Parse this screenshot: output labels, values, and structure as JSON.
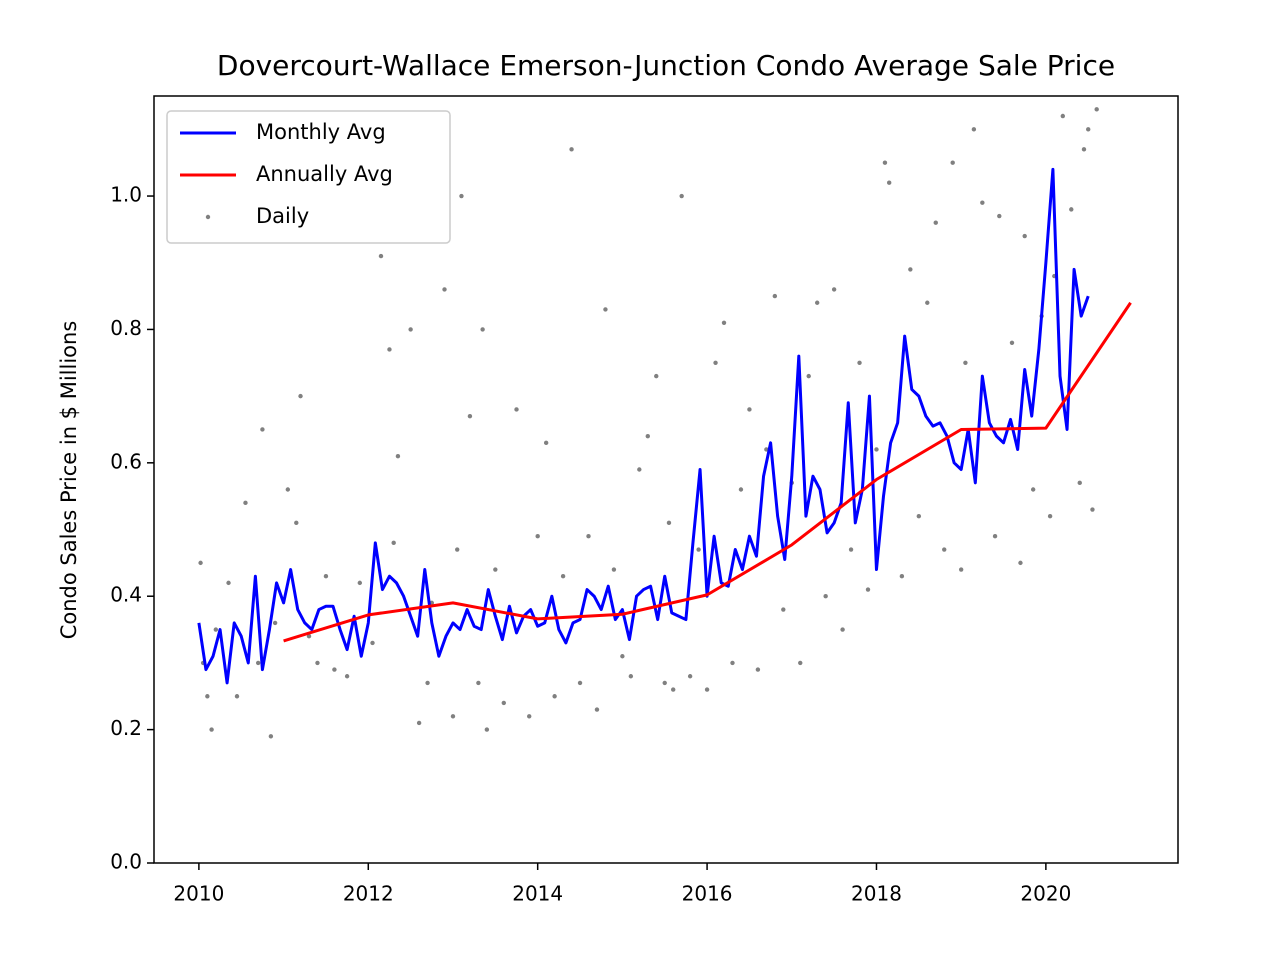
{
  "chart_data": {
    "type": "line",
    "title": "Dovercourt-Wallace Emerson-Junction Condo Average Sale Price",
    "y_label": "Condo Sales Price in $ Millions",
    "xlim": [
      2009.47,
      2021.56
    ],
    "ylim": [
      0,
      1.15
    ],
    "xticks": [
      2010,
      2012,
      2014,
      2016,
      2018,
      2020
    ],
    "yticks": [
      {
        "value": 0,
        "label": "0.0"
      },
      0.2,
      0.4,
      0.6,
      0.8,
      {
        "value": 1,
        "label": "1.0"
      }
    ],
    "legend": "upper left",
    "series": [
      {
        "name": "Monthly Avg",
        "color": "#0000ff",
        "style": "line",
        "x": [
          2010.0,
          2010.083,
          2010.167,
          2010.25,
          2010.333,
          2010.417,
          2010.5,
          2010.583,
          2010.667,
          2010.75,
          2010.833,
          2010.917,
          2011.0,
          2011.083,
          2011.167,
          2011.25,
          2011.333,
          2011.417,
          2011.5,
          2011.583,
          2011.667,
          2011.75,
          2011.833,
          2011.917,
          2012.0,
          2012.083,
          2012.167,
          2012.25,
          2012.333,
          2012.417,
          2012.5,
          2012.583,
          2012.667,
          2012.75,
          2012.833,
          2012.917,
          2013.0,
          2013.083,
          2013.167,
          2013.25,
          2013.333,
          2013.417,
          2013.5,
          2013.583,
          2013.667,
          2013.75,
          2013.833,
          2013.917,
          2014.0,
          2014.083,
          2014.167,
          2014.25,
          2014.333,
          2014.417,
          2014.5,
          2014.583,
          2014.667,
          2014.75,
          2014.833,
          2014.917,
          2015.0,
          2015.083,
          2015.167,
          2015.25,
          2015.333,
          2015.417,
          2015.5,
          2015.583,
          2015.667,
          2015.75,
          2015.833,
          2015.917,
          2016.0,
          2016.083,
          2016.167,
          2016.25,
          2016.333,
          2016.417,
          2016.5,
          2016.583,
          2016.667,
          2016.75,
          2016.833,
          2016.917,
          2017.0,
          2017.083,
          2017.167,
          2017.25,
          2017.333,
          2017.417,
          2017.5,
          2017.583,
          2017.667,
          2017.75,
          2017.833,
          2017.917,
          2018.0,
          2018.083,
          2018.167,
          2018.25,
          2018.333,
          2018.417,
          2018.5,
          2018.583,
          2018.667,
          2018.75,
          2018.833,
          2018.917,
          2019.0,
          2019.083,
          2019.167,
          2019.25,
          2019.333,
          2019.417,
          2019.5,
          2019.583,
          2019.667,
          2019.75,
          2019.833,
          2019.917,
          2020.0,
          2020.083,
          2020.167,
          2020.25,
          2020.333,
          2020.417,
          2020.5
        ],
        "values": [
          0.36,
          0.29,
          0.31,
          0.35,
          0.27,
          0.36,
          0.34,
          0.3,
          0.43,
          0.29,
          0.35,
          0.42,
          0.39,
          0.44,
          0.38,
          0.36,
          0.35,
          0.38,
          0.385,
          0.385,
          0.35,
          0.32,
          0.37,
          0.31,
          0.36,
          0.48,
          0.41,
          0.43,
          0.42,
          0.4,
          0.37,
          0.34,
          0.44,
          0.36,
          0.31,
          0.34,
          0.36,
          0.35,
          0.38,
          0.355,
          0.35,
          0.41,
          0.37,
          0.335,
          0.385,
          0.345,
          0.37,
          0.38,
          0.355,
          0.36,
          0.4,
          0.35,
          0.33,
          0.36,
          0.365,
          0.41,
          0.4,
          0.38,
          0.415,
          0.365,
          0.38,
          0.335,
          0.4,
          0.41,
          0.415,
          0.365,
          0.43,
          0.375,
          0.37,
          0.365,
          0.48,
          0.59,
          0.4,
          0.49,
          0.42,
          0.415,
          0.47,
          0.44,
          0.49,
          0.46,
          0.58,
          0.63,
          0.52,
          0.455,
          0.58,
          0.76,
          0.52,
          0.58,
          0.56,
          0.495,
          0.51,
          0.54,
          0.69,
          0.51,
          0.56,
          0.7,
          0.44,
          0.55,
          0.63,
          0.66,
          0.79,
          0.71,
          0.7,
          0.67,
          0.655,
          0.66,
          0.64,
          0.6,
          0.59,
          0.65,
          0.57,
          0.73,
          0.66,
          0.64,
          0.63,
          0.665,
          0.62,
          0.74,
          0.67,
          0.77,
          0.9,
          1.04,
          0.73,
          0.65,
          0.89,
          0.82,
          0.85
        ]
      },
      {
        "name": "Annually Avg",
        "color": "#ff0000",
        "style": "line",
        "x": [
          2011,
          2012,
          2013,
          2014,
          2015,
          2016,
          2017,
          2018,
          2019,
          2020,
          2021
        ],
        "values": [
          0.333,
          0.372,
          0.39,
          0.366,
          0.373,
          0.402,
          0.477,
          0.575,
          0.65,
          0.652,
          0.84
        ]
      },
      {
        "name": "Daily",
        "color": "#808080",
        "style": "scatter",
        "x": [
          2010.02,
          2010.05,
          2010.1,
          2010.15,
          2010.2,
          2010.35,
          2010.45,
          2010.55,
          2010.7,
          2010.75,
          2010.85,
          2010.9,
          2011.05,
          2011.15,
          2011.2,
          2011.3,
          2011.4,
          2011.5,
          2011.6,
          2011.75,
          2011.9,
          2012.05,
          2012.15,
          2012.25,
          2012.3,
          2012.35,
          2012.5,
          2012.6,
          2012.7,
          2012.75,
          2012.9,
          2013.0,
          2013.05,
          2013.1,
          2013.2,
          2013.3,
          2013.35,
          2013.4,
          2013.5,
          2013.6,
          2013.75,
          2013.9,
          2014.0,
          2014.1,
          2014.2,
          2014.3,
          2014.4,
          2014.5,
          2014.6,
          2014.7,
          2014.8,
          2014.9,
          2015.0,
          2015.1,
          2015.2,
          2015.3,
          2015.4,
          2015.5,
          2015.55,
          2015.6,
          2015.7,
          2015.8,
          2015.9,
          2016.0,
          2016.1,
          2016.2,
          2016.3,
          2016.4,
          2016.5,
          2016.6,
          2016.7,
          2016.8,
          2016.9,
          2017.0,
          2017.1,
          2017.2,
          2017.3,
          2017.4,
          2017.5,
          2017.6,
          2017.7,
          2017.8,
          2017.9,
          2018.0,
          2018.1,
          2018.15,
          2018.3,
          2018.4,
          2018.5,
          2018.6,
          2018.7,
          2018.8,
          2018.9,
          2019.0,
          2019.05,
          2019.15,
          2019.25,
          2019.4,
          2019.45,
          2019.6,
          2019.7,
          2019.75,
          2019.85,
          2019.95,
          2020.05,
          2020.1,
          2020.2,
          2020.3,
          2020.4,
          2020.45,
          2020.5,
          2020.55,
          2020.6
        ],
        "values": [
          0.45,
          0.3,
          0.25,
          0.2,
          0.35,
          0.42,
          0.25,
          0.54,
          0.3,
          0.65,
          0.19,
          0.36,
          0.56,
          0.51,
          0.7,
          0.34,
          0.3,
          0.43,
          0.29,
          0.28,
          0.42,
          0.33,
          0.91,
          0.77,
          0.48,
          0.61,
          0.8,
          0.21,
          0.27,
          0.39,
          0.86,
          0.22,
          0.47,
          1.0,
          0.67,
          0.27,
          0.8,
          0.2,
          0.44,
          0.24,
          0.68,
          0.22,
          0.49,
          0.63,
          0.25,
          0.43,
          1.07,
          0.27,
          0.49,
          0.23,
          0.83,
          0.44,
          0.31,
          0.28,
          0.59,
          0.64,
          0.73,
          0.27,
          0.51,
          0.26,
          1.0,
          0.28,
          0.47,
          0.26,
          0.75,
          0.81,
          0.3,
          0.56,
          0.68,
          0.29,
          0.62,
          0.85,
          0.38,
          0.57,
          0.3,
          0.73,
          0.84,
          0.4,
          0.86,
          0.35,
          0.47,
          0.75,
          0.41,
          0.62,
          1.05,
          1.02,
          0.43,
          0.89,
          0.52,
          0.84,
          0.96,
          0.47,
          1.05,
          0.44,
          0.75,
          1.1,
          0.99,
          0.49,
          0.97,
          0.78,
          0.45,
          0.94,
          0.56,
          0.82,
          0.52,
          0.88,
          1.12,
          0.98,
          0.57,
          1.07,
          1.1,
          0.53,
          1.13
        ]
      }
    ]
  }
}
